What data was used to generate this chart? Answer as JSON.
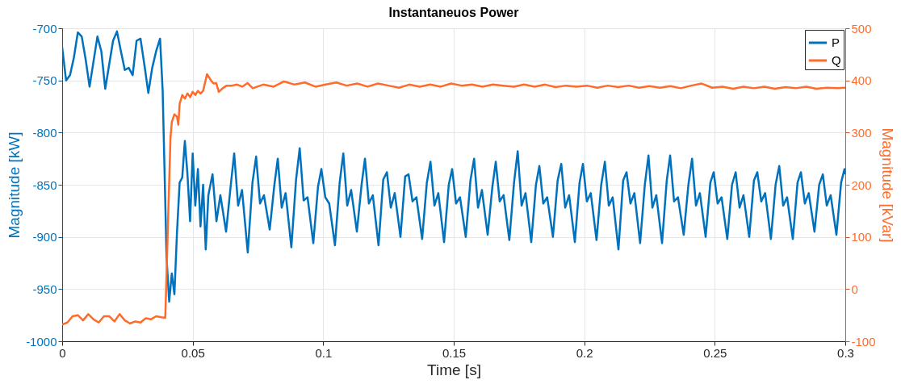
{
  "chart_data": {
    "type": "line",
    "title": "Instantaneuos Power",
    "xlabel": "Time [s]",
    "ylabel": "Magnitude [kW]",
    "y2label": "Magnitude [kVar]",
    "xlim": [
      0,
      0.3
    ],
    "xticks": [
      0,
      0.05,
      0.1,
      0.15,
      0.2,
      0.25,
      0.3
    ],
    "ylim": [
      -1000,
      -700
    ],
    "yticks": [
      -1000,
      -950,
      -900,
      -850,
      -800,
      -750,
      -700
    ],
    "y2lim": [
      -100,
      500
    ],
    "y2ticks": [
      -100,
      0,
      100,
      200,
      300,
      400,
      500
    ],
    "grid": true,
    "legend": "top right",
    "series": [
      {
        "name": "P",
        "color": "#0072bd",
        "x": [
          0,
          0.0015,
          0.003,
          0.0045,
          0.006,
          0.0075,
          0.009,
          0.0105,
          0.012,
          0.0135,
          0.015,
          0.0165,
          0.018,
          0.0195,
          0.021,
          0.0225,
          0.024,
          0.0255,
          0.027,
          0.0285,
          0.03,
          0.0315,
          0.033,
          0.0345,
          0.036,
          0.0375,
          0.0385,
          0.04,
          0.041,
          0.042,
          0.043,
          0.044,
          0.045,
          0.046,
          0.047,
          0.048,
          0.049,
          0.05,
          0.051,
          0.052,
          0.053,
          0.054,
          0.055,
          0.056,
          0.0576,
          0.0591,
          0.0606,
          0.0628,
          0.0646,
          0.0659,
          0.0674,
          0.0689,
          0.0711,
          0.0729,
          0.0743,
          0.0758,
          0.0773,
          0.0795,
          0.0813,
          0.0826,
          0.0841,
          0.0856,
          0.0878,
          0.0896,
          0.091,
          0.0925,
          0.094,
          0.0962,
          0.098,
          0.0993,
          0.1008,
          0.1023,
          0.1045,
          0.1063,
          0.1077,
          0.1092,
          0.1107,
          0.1129,
          0.1147,
          0.116,
          0.1175,
          0.119,
          0.1212,
          0.123,
          0.1244,
          0.1259,
          0.1274,
          0.1296,
          0.1314,
          0.1327,
          0.1342,
          0.1357,
          0.1379,
          0.1397,
          0.1411,
          0.1426,
          0.1441,
          0.1463,
          0.1481,
          0.1494,
          0.1509,
          0.1524,
          0.1546,
          0.1564,
          0.1578,
          0.1593,
          0.1608,
          0.163,
          0.1648,
          0.1661,
          0.1676,
          0.1691,
          0.1713,
          0.1731,
          0.1745,
          0.176,
          0.1775,
          0.1797,
          0.1815,
          0.1828,
          0.1843,
          0.1858,
          0.188,
          0.1898,
          0.1912,
          0.1927,
          0.1942,
          0.1964,
          0.1982,
          0.1995,
          0.201,
          0.2025,
          0.2047,
          0.2065,
          0.2079,
          0.2094,
          0.2109,
          0.2131,
          0.2149,
          0.2162,
          0.2177,
          0.2192,
          0.2214,
          0.2232,
          0.2246,
          0.2261,
          0.2276,
          0.2298,
          0.2316,
          0.2329,
          0.2344,
          0.2359,
          0.2381,
          0.2399,
          0.2413,
          0.2428,
          0.2443,
          0.2465,
          0.2483,
          0.2496,
          0.2511,
          0.2526,
          0.2548,
          0.2566,
          0.258,
          0.2595,
          0.261,
          0.2632,
          0.265,
          0.2663,
          0.2678,
          0.2693,
          0.2715,
          0.2733,
          0.2747,
          0.2762,
          0.2777,
          0.2799,
          0.2817,
          0.283,
          0.2845,
          0.286,
          0.2882,
          0.29,
          0.2914,
          0.2929,
          0.2944,
          0.2966,
          0.2984,
          0.2997,
          0.3
        ],
        "values": [
          -718,
          -750,
          -745,
          -728,
          -704,
          -708,
          -730,
          -756,
          -732,
          -708,
          -722,
          -758,
          -735,
          -712,
          -703,
          -722,
          -740,
          -738,
          -745,
          -712,
          -710,
          -735,
          -762,
          -738,
          -722,
          -710,
          -760,
          -920,
          -962,
          -935,
          -955,
          -895,
          -848,
          -843,
          -808,
          -840,
          -885,
          -820,
          -870,
          -835,
          -890,
          -850,
          -912,
          -860,
          -840,
          -885,
          -860,
          -895,
          -850,
          -820,
          -870,
          -855,
          -915,
          -848,
          -823,
          -868,
          -860,
          -893,
          -850,
          -825,
          -872,
          -858,
          -910,
          -845,
          -815,
          -865,
          -862,
          -906,
          -852,
          -835,
          -862,
          -868,
          -908,
          -848,
          -820,
          -870,
          -855,
          -895,
          -850,
          -825,
          -868,
          -860,
          -908,
          -845,
          -838,
          -872,
          -858,
          -900,
          -842,
          -840,
          -866,
          -862,
          -902,
          -848,
          -828,
          -870,
          -858,
          -905,
          -850,
          -835,
          -868,
          -862,
          -900,
          -846,
          -825,
          -872,
          -855,
          -898,
          -852,
          -828,
          -866,
          -860,
          -903,
          -848,
          -818,
          -870,
          -858,
          -905,
          -850,
          -832,
          -868,
          -862,
          -900,
          -846,
          -830,
          -872,
          -860,
          -905,
          -848,
          -830,
          -866,
          -858,
          -903,
          -850,
          -828,
          -870,
          -862,
          -912,
          -846,
          -838,
          -868,
          -858,
          -906,
          -850,
          -822,
          -872,
          -860,
          -906,
          -846,
          -822,
          -866,
          -862,
          -898,
          -850,
          -825,
          -870,
          -858,
          -900,
          -848,
          -838,
          -868,
          -862,
          -902,
          -850,
          -838,
          -872,
          -860,
          -900,
          -846,
          -838,
          -866,
          -858,
          -902,
          -850,
          -832,
          -870,
          -862,
          -902,
          -848,
          -838,
          -868,
          -858,
          -895,
          -850,
          -840,
          -870,
          -860,
          -898,
          -848,
          -835,
          -840
        ]
      },
      {
        "name": "Q",
        "color": "#ff6b2b",
        "axis": "y2",
        "x": [
          0,
          0.002,
          0.004,
          0.006,
          0.008,
          0.01,
          0.012,
          0.014,
          0.016,
          0.018,
          0.02,
          0.022,
          0.024,
          0.026,
          0.028,
          0.03,
          0.032,
          0.034,
          0.036,
          0.038,
          0.0395,
          0.0405,
          0.0415,
          0.042,
          0.043,
          0.044,
          0.0445,
          0.045,
          0.046,
          0.047,
          0.048,
          0.049,
          0.05,
          0.051,
          0.052,
          0.053,
          0.054,
          0.0555,
          0.057,
          0.058,
          0.059,
          0.06,
          0.0615,
          0.063,
          0.065,
          0.067,
          0.069,
          0.071,
          0.073,
          0.077,
          0.081,
          0.085,
          0.089,
          0.093,
          0.097,
          0.101,
          0.105,
          0.109,
          0.113,
          0.117,
          0.121,
          0.125,
          0.129,
          0.133,
          0.137,
          0.141,
          0.145,
          0.149,
          0.153,
          0.157,
          0.161,
          0.165,
          0.169,
          0.173,
          0.177,
          0.181,
          0.185,
          0.189,
          0.193,
          0.197,
          0.201,
          0.205,
          0.209,
          0.213,
          0.217,
          0.221,
          0.225,
          0.229,
          0.233,
          0.237,
          0.241,
          0.245,
          0.249,
          0.253,
          0.257,
          0.261,
          0.265,
          0.269,
          0.273,
          0.277,
          0.281,
          0.285,
          0.289,
          0.293,
          0.297,
          0.3
        ],
        "values": [
          -68,
          -64,
          -52,
          -50,
          -60,
          -48,
          -58,
          -64,
          -52,
          -52,
          -62,
          -48,
          -60,
          -66,
          -62,
          -64,
          -56,
          -58,
          -52,
          -54,
          -55,
          120,
          290,
          320,
          335,
          330,
          315,
          355,
          372,
          365,
          375,
          368,
          378,
          372,
          380,
          375,
          380,
          412,
          400,
          394,
          395,
          378,
          385,
          390,
          390,
          392,
          388,
          395,
          385,
          392,
          388,
          398,
          392,
          396,
          388,
          392,
          396,
          390,
          394,
          388,
          394,
          390,
          386,
          392,
          388,
          392,
          388,
          394,
          390,
          392,
          388,
          392,
          390,
          388,
          392,
          388,
          392,
          387,
          390,
          388,
          390,
          386,
          390,
          387,
          390,
          386,
          389,
          386,
          389,
          385,
          390,
          394,
          386,
          388,
          384,
          388,
          385,
          388,
          384,
          387,
          385,
          388,
          384,
          386,
          385,
          386
        ]
      }
    ]
  }
}
